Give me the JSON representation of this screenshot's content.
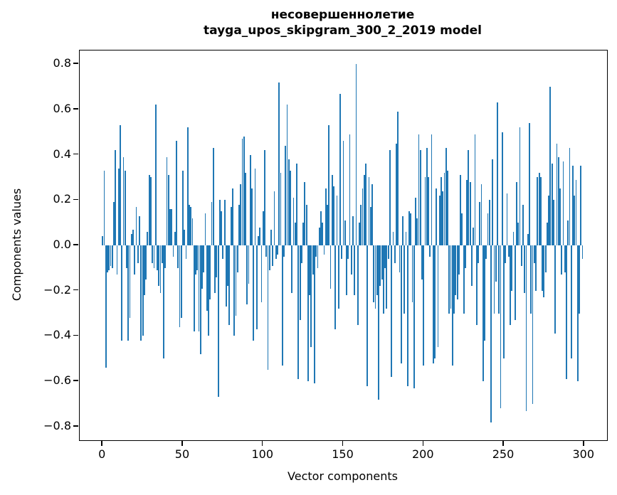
{
  "title": {
    "line1": "несовершеннолетие",
    "line2": "tayga_upos_skipgram_300_2_2019 model"
  },
  "chart_data": {
    "type": "bar",
    "title": "несовершеннолетие",
    "subtitle": "tayga_upos_skipgram_300_2_2019 model",
    "xlabel": "Vector components",
    "ylabel": "Components values",
    "x_ticks": [
      0,
      50,
      100,
      150,
      200,
      250,
      300
    ],
    "y_ticks": [
      0.8,
      0.6,
      0.4,
      0.2,
      0.0,
      -0.2,
      -0.4,
      -0.6,
      -0.8
    ],
    "xlim": [
      -14.3,
      314.3
    ],
    "ylim": [
      -0.86,
      0.86
    ],
    "grid": false,
    "legend": null,
    "bar_color": "#1f77b4",
    "bar_width_units": 0.8,
    "n_components": 300,
    "values": [
      0.04,
      0.33,
      -0.54,
      -0.12,
      -0.11,
      -0.09,
      -0.1,
      0.19,
      0.42,
      -0.13,
      0.34,
      0.53,
      -0.42,
      0.39,
      0.33,
      -0.1,
      -0.42,
      -0.32,
      0.05,
      0.07,
      -0.13,
      0.17,
      -0.08,
      0.13,
      -0.42,
      -0.4,
      -0.22,
      -0.15,
      0.06,
      0.31,
      0.3,
      -0.08,
      -0.1,
      0.62,
      -0.11,
      -0.18,
      -0.21,
      -0.08,
      -0.5,
      -0.1,
      0.39,
      0.31,
      0.16,
      0.16,
      -0.05,
      0.06,
      0.46,
      -0.1,
      -0.36,
      -0.32,
      0.33,
      0.07,
      -0.06,
      0.52,
      0.18,
      0.17,
      0.12,
      -0.38,
      -0.13,
      -0.11,
      -0.38,
      -0.48,
      -0.19,
      -0.12,
      0.14,
      -0.29,
      -0.4,
      -0.24,
      0.19,
      0.43,
      -0.21,
      -0.14,
      -0.67,
      0.2,
      0.15,
      -0.06,
      0.2,
      -0.27,
      -0.18,
      -0.35,
      0.17,
      0.25,
      -0.4,
      -0.31,
      -0.12,
      0.18,
      0.27,
      0.47,
      0.48,
      0.32,
      -0.26,
      -0.17,
      0.4,
      0.25,
      -0.42,
      0.34,
      -0.37,
      0.04,
      0.08,
      -0.25,
      0.15,
      0.42,
      -0.05,
      -0.55,
      -0.11,
      0.07,
      -0.09,
      0.24,
      -0.06,
      -0.04,
      0.72,
      0.32,
      -0.53,
      -0.05,
      0.44,
      0.62,
      0.38,
      0.33,
      -0.21,
      0.21,
      0.1,
      0.36,
      -0.59,
      -0.33,
      -0.08,
      0.1,
      0.28,
      0.18,
      -0.6,
      -0.22,
      -0.45,
      -0.13,
      -0.61,
      -0.05,
      -0.1,
      0.08,
      0.15,
      0.1,
      -0.04,
      0.25,
      0.18,
      0.53,
      -0.19,
      0.31,
      0.26,
      -0.37,
      0.22,
      -0.28,
      0.67,
      -0.06,
      0.46,
      0.11,
      -0.22,
      -0.06,
      0.49,
      -0.13,
      0.13,
      -0.22,
      0.8,
      -0.35,
      0.1,
      0.18,
      0.25,
      0.31,
      0.36,
      -0.62,
      0.3,
      0.17,
      0.27,
      -0.25,
      -0.28,
      -0.22,
      -0.68,
      -0.18,
      -0.15,
      -0.3,
      -0.1,
      -0.28,
      -0.06,
      0.42,
      -0.58,
      0.06,
      -0.08,
      0.45,
      0.59,
      -0.12,
      -0.52,
      0.13,
      -0.3,
      0.06,
      -0.62,
      0.15,
      0.14,
      -0.25,
      -0.63,
      0.21,
      0.12,
      0.49,
      0.42,
      -0.15,
      -0.53,
      0.3,
      0.43,
      0.3,
      -0.05,
      0.49,
      -0.52,
      -0.5,
      0.25,
      -0.45,
      0.22,
      0.3,
      0.24,
      0.32,
      0.43,
      0.33,
      -0.3,
      -0.28,
      -0.53,
      -0.3,
      -0.22,
      -0.24,
      -0.13,
      0.31,
      0.14,
      -0.3,
      -0.1,
      0.29,
      0.42,
      0.28,
      -0.18,
      0.08,
      0.49,
      -0.35,
      -0.08,
      0.19,
      0.27,
      -0.6,
      -0.42,
      -0.06,
      0.14,
      0.2,
      -0.78,
      0.38,
      -0.3,
      -0.16,
      0.63,
      -0.3,
      -0.72,
      0.5,
      -0.5,
      -0.08,
      0.23,
      -0.05,
      -0.35,
      -0.2,
      0.06,
      -0.33,
      0.28,
      0.1,
      0.52,
      -0.09,
      0.18,
      -0.21,
      -0.73,
      0.05,
      0.54,
      -0.3,
      -0.7,
      -0.08,
      -0.2,
      0.3,
      0.32,
      0.3,
      -0.2,
      -0.23,
      -0.12,
      0.1,
      0.22,
      0.7,
      0.36,
      0.2,
      -0.39,
      0.45,
      0.39,
      0.25,
      -0.13,
      0.37,
      -0.12,
      -0.59,
      0.11,
      0.43,
      -0.5,
      0.35,
      0.22,
      0.29,
      -0.6,
      -0.3,
      0.35,
      -0.06
    ]
  }
}
